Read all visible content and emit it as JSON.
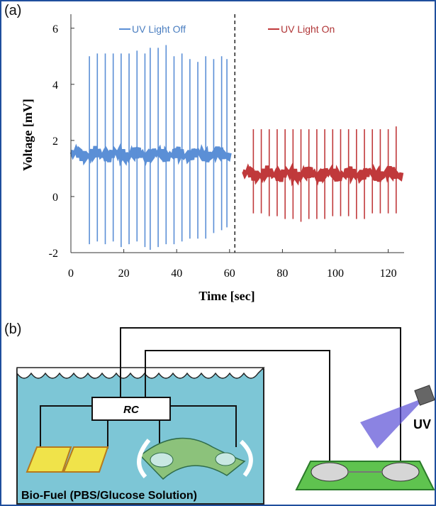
{
  "panel_a_label": "(a)",
  "panel_b_label": "(b)",
  "chart_data": {
    "type": "line",
    "title": "",
    "xlabel": "Time [sec]",
    "ylabel": "Voltage [mV]",
    "xlim": [
      0,
      126
    ],
    "ylim": [
      -2,
      6.5
    ],
    "x_ticks": [
      0,
      20,
      40,
      60,
      80,
      100,
      120
    ],
    "y_ticks": [
      -2,
      0,
      2,
      4,
      6
    ],
    "legend_position": "top",
    "grid": false,
    "divider_x": 62,
    "series": [
      {
        "name": "UV Light Off",
        "color": "#5b8fd6",
        "baseline": 1.5,
        "x_range": [
          0,
          60
        ],
        "spikes": [
          {
            "x": 7,
            "max": 5.0,
            "min": -1.7
          },
          {
            "x": 10,
            "max": 5.1,
            "min": -1.6
          },
          {
            "x": 13,
            "max": 5.1,
            "min": -1.7
          },
          {
            "x": 16,
            "max": 5.1,
            "min": -1.6
          },
          {
            "x": 19,
            "max": 5.1,
            "min": -1.8
          },
          {
            "x": 22,
            "max": 5.1,
            "min": -1.7
          },
          {
            "x": 25,
            "max": 5.2,
            "min": -1.6
          },
          {
            "x": 28,
            "max": 5.1,
            "min": -1.8
          },
          {
            "x": 30,
            "max": 5.3,
            "min": -1.9
          },
          {
            "x": 33,
            "max": 5.3,
            "min": -1.8
          },
          {
            "x": 36,
            "max": 5.4,
            "min": -1.7
          },
          {
            "x": 39,
            "max": 5.0,
            "min": -1.7
          },
          {
            "x": 42,
            "max": 5.1,
            "min": -1.6
          },
          {
            "x": 45,
            "max": 4.9,
            "min": -1.5
          },
          {
            "x": 48,
            "max": 4.8,
            "min": -1.5
          },
          {
            "x": 51,
            "max": 5.0,
            "min": -1.5
          },
          {
            "x": 54,
            "max": 4.9,
            "min": -1.3
          },
          {
            "x": 57,
            "max": 5.0,
            "min": -1.2
          },
          {
            "x": 59,
            "max": 4.9,
            "min": -1.1
          }
        ]
      },
      {
        "name": "UV Light On",
        "color": "#c0393b",
        "baseline": 0.8,
        "x_range": [
          65,
          125
        ],
        "spikes": [
          {
            "x": 69,
            "max": 2.4,
            "min": -0.6
          },
          {
            "x": 72,
            "max": 2.4,
            "min": -0.6
          },
          {
            "x": 75,
            "max": 2.4,
            "min": -0.7
          },
          {
            "x": 78,
            "max": 2.4,
            "min": -0.7
          },
          {
            "x": 81,
            "max": 2.4,
            "min": -0.8
          },
          {
            "x": 84,
            "max": 2.4,
            "min": -0.8
          },
          {
            "x": 87,
            "max": 2.4,
            "min": -0.9
          },
          {
            "x": 90,
            "max": 2.4,
            "min": -0.8
          },
          {
            "x": 93,
            "max": 2.4,
            "min": -0.8
          },
          {
            "x": 96,
            "max": 2.4,
            "min": -0.8
          },
          {
            "x": 99,
            "max": 2.4,
            "min": -0.7
          },
          {
            "x": 102,
            "max": 2.4,
            "min": -0.7
          },
          {
            "x": 105,
            "max": 2.4,
            "min": -0.7
          },
          {
            "x": 108,
            "max": 2.4,
            "min": -0.8
          },
          {
            "x": 111,
            "max": 2.4,
            "min": -0.8
          },
          {
            "x": 114,
            "max": 2.4,
            "min": -0.6
          },
          {
            "x": 117,
            "max": 2.4,
            "min": -0.6
          },
          {
            "x": 120,
            "max": 2.4,
            "min": -0.6
          },
          {
            "x": 123,
            "max": 2.5,
            "min": -0.6
          }
        ]
      }
    ]
  },
  "diagram": {
    "rc_label": "RC",
    "uv_label": "UV",
    "bio_fuel_label": "Bio-Fuel  (PBS/Glucose Solution)"
  }
}
